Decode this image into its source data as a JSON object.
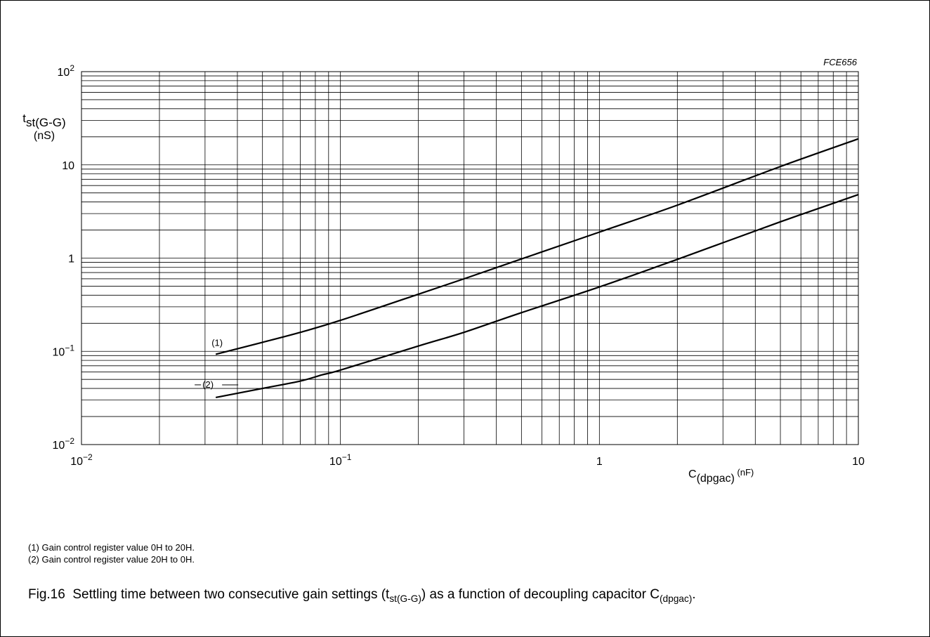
{
  "figure_id": "FCE656",
  "notes": [
    "(1) Gain control register value 0H to 20H.",
    "(2) Gain control register value 20H to 0H."
  ],
  "caption": {
    "number": "Fig.16",
    "text_a": "Settling time between two consecutive gain settings (t",
    "sub_a": "st(G-G)",
    "text_b": ") as a function of decoupling capacitor C",
    "sub_b": "(dpgac)",
    "text_c": "."
  },
  "chart_data": {
    "type": "line",
    "x_scale": "log",
    "y_scale": "log",
    "xlim": [
      0.01,
      10
    ],
    "ylim": [
      0.01,
      100
    ],
    "grid": true,
    "ylabel": {
      "main": "t",
      "sub": "st(G-G)",
      "unit": "(nS)"
    },
    "xlabel": {
      "main": "C",
      "sub": "(dpgac)",
      "unit": " (nF)"
    },
    "x_ticks": [
      {
        "value": 0.01,
        "base": "10",
        "exp": "−2"
      },
      {
        "value": 0.1,
        "base": "10",
        "exp": "−1"
      },
      {
        "value": 1,
        "base": "1",
        "exp": ""
      },
      {
        "value": 10,
        "base": "10",
        "exp": ""
      }
    ],
    "y_ticks": [
      {
        "value": 0.01,
        "base": "10",
        "exp": "−2"
      },
      {
        "value": 0.1,
        "base": "10",
        "exp": "−1"
      },
      {
        "value": 1,
        "base": "1",
        "exp": ""
      },
      {
        "value": 10,
        "base": "10",
        "exp": ""
      },
      {
        "value": 100,
        "base": "10",
        "exp": "2"
      }
    ],
    "series": [
      {
        "name": "(1)",
        "x": [
          0.033,
          0.05,
          0.07,
          0.1,
          0.2,
          0.3,
          0.5,
          1,
          2,
          5,
          10
        ],
        "y": [
          0.093,
          0.125,
          0.16,
          0.215,
          0.41,
          0.6,
          0.98,
          1.9,
          3.7,
          9.6,
          19
        ]
      },
      {
        "name": "(2)",
        "x": [
          0.033,
          0.05,
          0.07,
          0.085,
          0.1,
          0.2,
          0.3,
          0.5,
          1,
          2,
          5,
          10
        ],
        "y": [
          0.032,
          0.04,
          0.048,
          0.056,
          0.063,
          0.114,
          0.16,
          0.26,
          0.49,
          0.97,
          2.45,
          4.8
        ]
      }
    ]
  }
}
